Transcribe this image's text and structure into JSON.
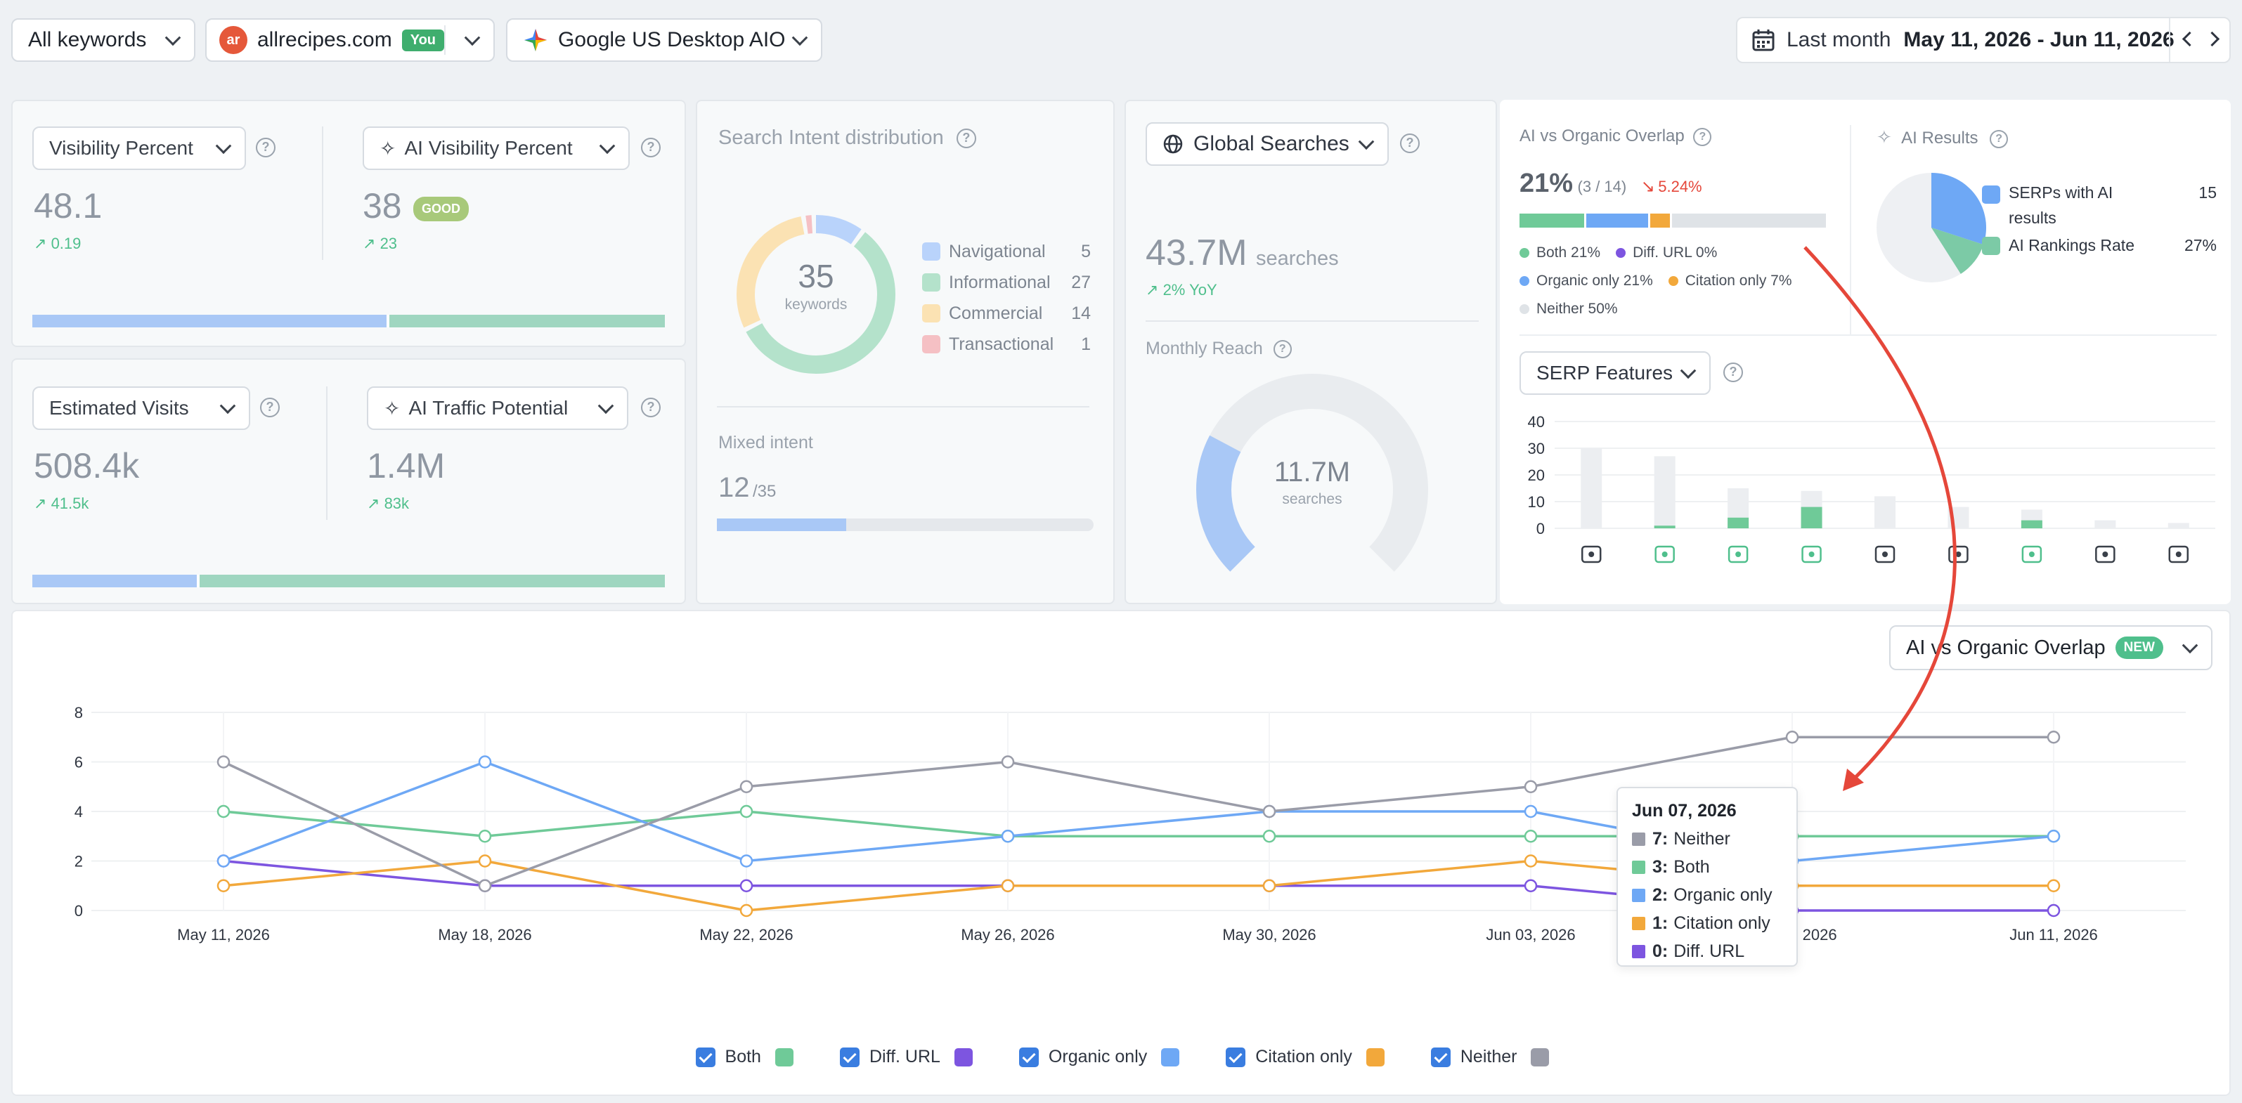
{
  "toolbar": {
    "keywords": "All keywords",
    "domain": "allrecipes.com",
    "domain_icon": "ar",
    "you_badge": "You",
    "engine": "Google US Desktop AIO",
    "period": "Last month",
    "date_range": "May 11, 2026 - Jun 11, 2026"
  },
  "visibility": {
    "label": "Visibility Percent",
    "value": "48.1",
    "delta": "0.19",
    "ai_label": "AI Visibility Percent",
    "ai_value": "38",
    "ai_badge": "GOOD",
    "ai_delta": "23",
    "bar_fraction": 0.56
  },
  "visits": {
    "label": "Estimated Visits",
    "value": "508.4k",
    "delta": "41.5k",
    "ai_label": "AI Traffic Potential",
    "ai_value": "1.4M",
    "ai_delta": "83k",
    "bar_fraction": 0.26
  },
  "intent": {
    "title": "Search Intent distribution",
    "total": "35",
    "total_label": "keywords",
    "items": [
      {
        "label": "Navigational",
        "count": "5",
        "color": "#b9d3fb"
      },
      {
        "label": "Informational",
        "count": "27",
        "color": "#b4e2cb"
      },
      {
        "label": "Commercial",
        "count": "14",
        "color": "#fbe2b3"
      },
      {
        "label": "Transactional",
        "count": "1",
        "color": "#f5c0c4"
      }
    ],
    "mixed_label": "Mixed intent",
    "mixed_value": "12",
    "mixed_total": "/35",
    "mixed_fraction": 0.343
  },
  "searches": {
    "select": "Global Searches",
    "value": "43.7M",
    "unit": "searches",
    "yoy": "2% YoY",
    "reach_label": "Monthly Reach",
    "reach_value": "11.7M",
    "reach_unit": "searches",
    "reach_fraction": 0.27
  },
  "overlap": {
    "title": "AI vs Organic Overlap",
    "percent": "21%",
    "ratio": "(3 / 14)",
    "change": "5.24%",
    "bar": [
      {
        "fraction": 0.21,
        "color": "#6fca98"
      },
      {
        "fraction": 0.21,
        "color": "#6ea8f5"
      },
      {
        "fraction": 0.07,
        "color": "#f2a83b"
      },
      {
        "fraction": 0.51,
        "color": "#dfe3e7"
      }
    ],
    "legend": [
      {
        "label": "Both 21%",
        "color": "#6fca98"
      },
      {
        "label": "Diff. URL 0%",
        "color": "#7d55e0"
      },
      {
        "label": "Organic only 21%",
        "color": "#6ea8f5"
      },
      {
        "label": "Citation only 7%",
        "color": "#f2a83b"
      },
      {
        "label": "Neither 50%",
        "color": "#dfe3e7"
      }
    ]
  },
  "ai_results": {
    "title": "AI Results",
    "items": [
      {
        "label": "SERPs with AI results",
        "value": "15",
        "color": "#6ea8f5"
      },
      {
        "label": "AI Rankings Rate",
        "value": "27%",
        "color": "#7ccaa6"
      }
    ]
  },
  "serp": {
    "select": "SERP Features",
    "y_ticks": [
      "40",
      "30",
      "20",
      "10",
      "0"
    ],
    "ymax": 40,
    "bars": [
      {
        "total": 30,
        "green": 0,
        "icon": "video-icon"
      },
      {
        "total": 27,
        "green": 1,
        "icon": "reviews-icon"
      },
      {
        "total": 15,
        "green": 4,
        "icon": "ai-overview-icon"
      },
      {
        "total": 14,
        "green": 8,
        "icon": "recipes-icon"
      },
      {
        "total": 12,
        "green": 0,
        "icon": "local-pack-icon"
      },
      {
        "total": 8,
        "green": 0,
        "icon": "filters-icon"
      },
      {
        "total": 7,
        "green": 3,
        "icon": "images-icon"
      },
      {
        "total": 3,
        "green": 0,
        "icon": "knowledge-icon"
      },
      {
        "total": 2,
        "green": 0,
        "icon": "questions-icon"
      }
    ]
  },
  "main_chart_select": {
    "label": "AI vs Organic Overlap",
    "badge": "NEW"
  },
  "chart_data": {
    "type": "line",
    "x": [
      "May 11, 2026",
      "May 18, 2026",
      "May 22, 2026",
      "May 26, 2026",
      "May 30, 2026",
      "Jun 03, 2026",
      "Jun 07, 2026",
      "Jun 11, 2026"
    ],
    "y_ticks": [
      "8",
      "6",
      "4",
      "2",
      "0"
    ],
    "ylim": [
      0,
      8
    ],
    "grid": true,
    "series": [
      {
        "name": "Both",
        "color": "#6fca98",
        "values": [
          4,
          3,
          4,
          3,
          3,
          3,
          3,
          3
        ]
      },
      {
        "name": "Diff. URL",
        "color": "#7d55e0",
        "values": [
          2,
          1,
          1,
          1,
          1,
          1,
          0,
          0
        ]
      },
      {
        "name": "Organic only",
        "color": "#6ea8f5",
        "values": [
          2,
          6,
          2,
          3,
          4,
          4,
          2,
          3
        ]
      },
      {
        "name": "Citation only",
        "color": "#f2a83b",
        "values": [
          1,
          2,
          0,
          1,
          1,
          2,
          1,
          1
        ]
      },
      {
        "name": "Neither",
        "color": "#9a9ca8",
        "values": [
          6,
          1,
          5,
          6,
          4,
          5,
          7,
          7
        ]
      }
    ],
    "tooltip": {
      "title": "Jun 07, 2026",
      "rows": [
        {
          "value": "7:",
          "label": "Neither",
          "color": "#9a9ca8"
        },
        {
          "value": "3:",
          "label": "Both",
          "color": "#6fca98"
        },
        {
          "value": "2:",
          "label": "Organic only",
          "color": "#6ea8f5"
        },
        {
          "value": "1:",
          "label": "Citation only",
          "color": "#f2a83b"
        },
        {
          "value": "0:",
          "label": "Diff. URL",
          "color": "#7d55e0"
        }
      ]
    }
  },
  "colors": {
    "blue_bar": "#a9c8f6",
    "green_bar": "#9fd6c0",
    "arrow": "#e5473a"
  }
}
